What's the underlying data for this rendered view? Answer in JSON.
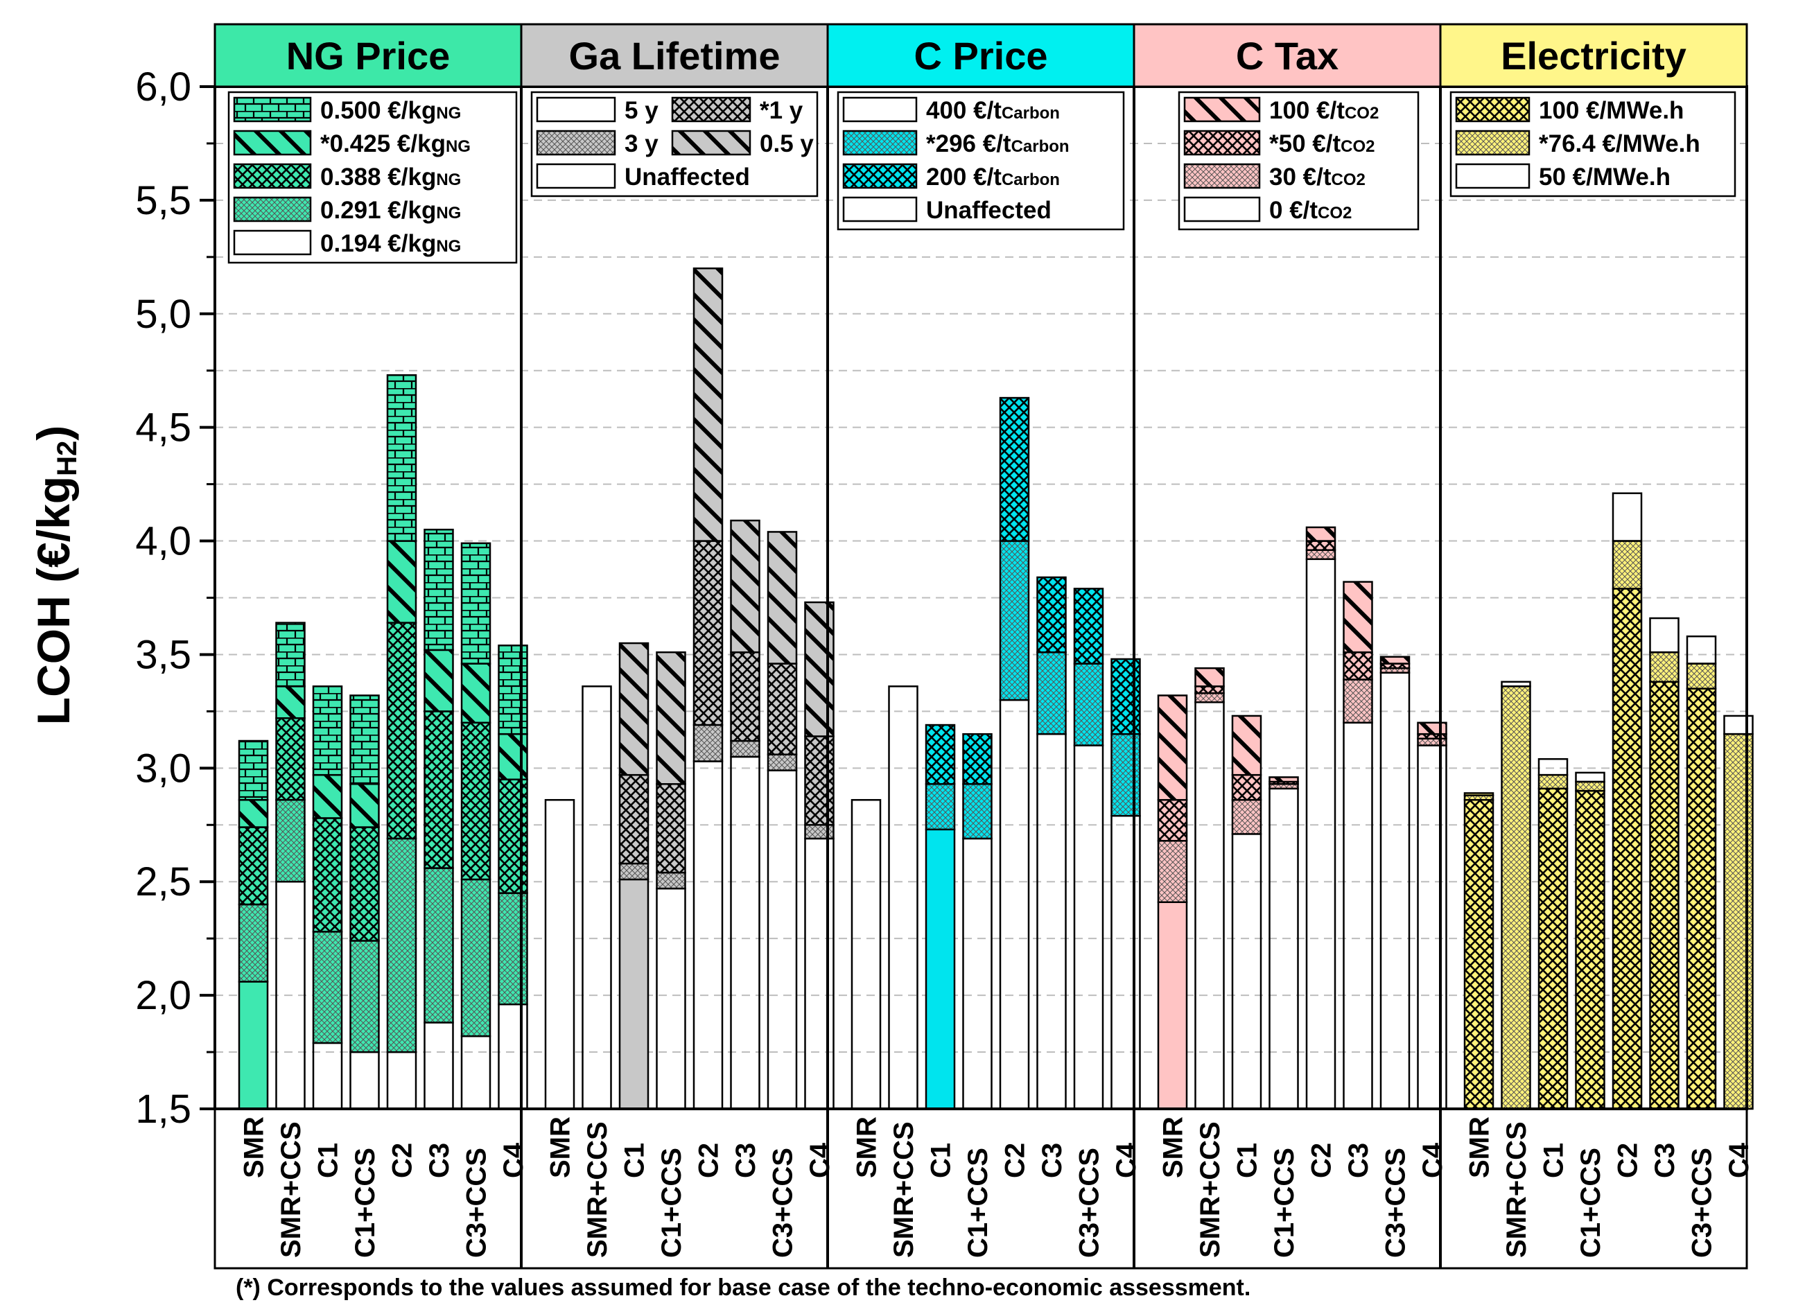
{
  "chart_data": {
    "type": "bar",
    "subtype": "stacked-sensitivity-panels",
    "ylabel": "LCOH (€/kg",
    "ylabel_sub": "H2",
    "ylabel_close": ")",
    "ylim": [
      1.5,
      6.0
    ],
    "yticks": [
      "1,5",
      "2,0",
      "2,5",
      "3,0",
      "3,5",
      "4,0",
      "4,5",
      "5,0",
      "5,5",
      "6,0"
    ],
    "ytick_values": [
      1.5,
      2.0,
      2.5,
      3.0,
      3.5,
      4.0,
      4.5,
      5.0,
      5.5,
      6.0
    ],
    "grid": true,
    "categories": [
      "SMR",
      "SMR+CCS",
      "C1",
      "C1+CCS",
      "C2",
      "C3",
      "C3+CCS",
      "C4"
    ],
    "footnote": "(*) Corresponds to the values assumed for base case of the techno-economic assessment.",
    "colors": {
      "ng": "#3ee8b0",
      "gray": "#c8c8c8",
      "white": "#ffffff",
      "cyan": "#00e4ee",
      "pink": "#ffc4c4",
      "yellow": "#fff27a",
      "yellow_bright": "#ffee00",
      "frame": "#000000"
    },
    "panels": [
      {
        "key": "ng",
        "title": "NG Price",
        "header_color": "#3de8a8",
        "legend": [
          {
            "label": "0.500 €/kg",
            "sub": "NG",
            "pattern": "brick",
            "fill": "#3ee8b0"
          },
          {
            "label": "*0.425 €/kg",
            "sub": "NG",
            "pattern": "diag",
            "fill": "#3ee8b0"
          },
          {
            "label": "0.388 €/kg",
            "sub": "NG",
            "pattern": "cross",
            "fill": "#3ee8b0"
          },
          {
            "label": "0.291 €/kg",
            "sub": "NG",
            "pattern": "dots",
            "fill": "#3ee8b0"
          },
          {
            "label": "0.194 €/kg",
            "sub": "NG",
            "pattern": "solid",
            "fill": "#3ee8b0"
          }
        ],
        "series": [
          {
            "name": "0.194 €/kgNG",
            "values": [
              2.06,
              2.5,
              1.79,
              1.75,
              1.75,
              1.88,
              1.82,
              1.96
            ],
            "pattern": "solid",
            "fill": "#3ee8b0"
          },
          {
            "name": "0.291 €/kgNG",
            "values": [
              2.4,
              2.86,
              2.28,
              2.24,
              2.69,
              2.56,
              2.51,
              2.45
            ],
            "pattern": "dots",
            "fill": "#3ee8b0"
          },
          {
            "name": "0.388 €/kgNG",
            "values": [
              2.74,
              3.22,
              2.78,
              2.74,
              3.64,
              3.25,
              3.2,
              2.95
            ],
            "pattern": "cross",
            "fill": "#3ee8b0"
          },
          {
            "name": "*0.425 €/kgNG",
            "values": [
              2.86,
              3.36,
              2.97,
              2.93,
              4.0,
              3.52,
              3.46,
              3.15
            ],
            "pattern": "diag",
            "fill": "#3ee8b0"
          },
          {
            "name": "0.500 €/kgNG",
            "values": [
              3.12,
              3.64,
              3.36,
              3.32,
              4.73,
              4.05,
              3.99,
              3.54
            ],
            "pattern": "brick",
            "fill": "#3ee8b0"
          }
        ]
      },
      {
        "key": "ga",
        "title": "Ga Lifetime",
        "header_color": "#c8c8c8",
        "legend": [
          {
            "label": "5 y",
            "pattern": "solid",
            "fill": "#c8c8c8"
          },
          {
            "label": "*1 y",
            "pattern": "cross",
            "fill": "#c8c8c8"
          },
          {
            "label": "3 y",
            "pattern": "dots",
            "fill": "#c8c8c8"
          },
          {
            "label": "0.5 y",
            "pattern": "diag",
            "fill": "#c8c8c8"
          },
          {
            "label": "Unaffected",
            "pattern": "solid",
            "fill": "#ffffff"
          }
        ],
        "series": [
          {
            "name": "Unaffected",
            "values": [
              2.86,
              3.36,
              null,
              null,
              null,
              null,
              null,
              null
            ],
            "pattern": "solid",
            "fill": "#ffffff"
          },
          {
            "name": "5 y",
            "values": [
              null,
              null,
              2.51,
              2.47,
              3.03,
              3.05,
              2.99,
              2.69
            ],
            "pattern": "solid",
            "fill": "#c8c8c8"
          },
          {
            "name": "3 y",
            "values": [
              null,
              null,
              2.58,
              2.54,
              3.19,
              3.12,
              3.06,
              2.75
            ],
            "pattern": "dots",
            "fill": "#c8c8c8"
          },
          {
            "name": "*1 y",
            "values": [
              null,
              null,
              2.97,
              2.93,
              4.0,
              3.51,
              3.46,
              3.14
            ],
            "pattern": "cross",
            "fill": "#c8c8c8"
          },
          {
            "name": "0.5 y",
            "values": [
              null,
              null,
              3.55,
              3.51,
              5.2,
              4.09,
              4.04,
              3.73
            ],
            "pattern": "diag",
            "fill": "#c8c8c8"
          }
        ]
      },
      {
        "key": "cp",
        "title": "C Price",
        "header_color": "#00f0f0",
        "legend": [
          {
            "label": "400 €/t",
            "sub": "Carbon",
            "pattern": "solid",
            "fill": "#00e4ee"
          },
          {
            "label": "*296 €/t",
            "sub": "Carbon",
            "pattern": "dots",
            "fill": "#00e4ee"
          },
          {
            "label": "200 €/t",
            "sub": "Carbon",
            "pattern": "cross",
            "fill": "#00e4ee"
          },
          {
            "label": "Unaffected",
            "pattern": "solid",
            "fill": "#ffffff"
          }
        ],
        "series": [
          {
            "name": "Unaffected",
            "values": [
              2.86,
              3.36,
              null,
              null,
              null,
              null,
              null,
              null
            ],
            "pattern": "solid",
            "fill": "#ffffff"
          },
          {
            "name": "400 €/tCarbon",
            "values": [
              null,
              null,
              2.73,
              2.69,
              3.3,
              3.15,
              3.1,
              2.79
            ],
            "pattern": "solid",
            "fill": "#00e4ee"
          },
          {
            "name": "*296 €/tCarbon",
            "values": [
              null,
              null,
              2.93,
              2.93,
              4.0,
              3.51,
              3.46,
              3.15
            ],
            "pattern": "dots",
            "fill": "#00e4ee"
          },
          {
            "name": "200 €/tCarbon",
            "values": [
              null,
              null,
              3.19,
              3.15,
              4.63,
              3.84,
              3.79,
              3.48
            ],
            "pattern": "cross",
            "fill": "#00e4ee"
          }
        ]
      },
      {
        "key": "ct",
        "title": "C Tax",
        "header_color": "#ffc4c4",
        "legend": [
          {
            "label": "100 €/t",
            "sub": "CO2",
            "pattern": "diag",
            "fill": "#ffc4c4"
          },
          {
            "label": "*50 €/t",
            "sub": "CO2",
            "pattern": "cross",
            "fill": "#ffc4c4"
          },
          {
            "label": "30 €/t",
            "sub": "CO2",
            "pattern": "dots",
            "fill": "#ffc4c4"
          },
          {
            "label": "0 €/t",
            "sub": "CO2",
            "pattern": "solid",
            "fill": "#ffc4c4"
          }
        ],
        "series": [
          {
            "name": "0 €/tCO2",
            "values": [
              2.41,
              3.29,
              2.71,
              2.91,
              3.92,
              3.2,
              3.42,
              3.1
            ],
            "pattern": "solid",
            "fill": "#ffc4c4"
          },
          {
            "name": "30 €/tCO2",
            "values": [
              2.68,
              3.33,
              2.86,
              2.93,
              3.96,
              3.39,
              3.44,
              3.13
            ],
            "pattern": "dots",
            "fill": "#ffc4c4"
          },
          {
            "name": "*50 €/tCO2",
            "values": [
              2.86,
              3.36,
              2.97,
              2.94,
              4.0,
              3.51,
              3.46,
              3.15
            ],
            "pattern": "cross",
            "fill": "#ffc4c4"
          },
          {
            "name": "100 €/tCO2",
            "values": [
              3.32,
              3.44,
              3.23,
              2.96,
              4.06,
              3.82,
              3.49,
              3.2
            ],
            "pattern": "diag",
            "fill": "#ffc4c4"
          }
        ]
      },
      {
        "key": "el",
        "title": "Electricity",
        "header_color": "#fff68a",
        "legend": [
          {
            "label": "100 €/MWe.h",
            "pattern": "cross",
            "fill": "#fff27a"
          },
          {
            "label": "*76.4 €/MWe.h",
            "pattern": "dots",
            "fill": "#fff27a"
          },
          {
            "label": "50 €/MWe.h",
            "pattern": "solid",
            "fill": "#fff27a"
          }
        ],
        "series": [
          {
            "name": "100 €/MWe.h",
            "values": [
              2.86,
              null,
              2.91,
              2.9,
              3.79,
              3.38,
              3.35,
              null
            ],
            "pattern": "cross",
            "fill": "#fff27a"
          },
          {
            "name": "*76.4 €/MWe.h",
            "values": [
              2.88,
              3.36,
              2.97,
              2.94,
              4.0,
              3.51,
              3.46,
              3.15
            ],
            "pattern": "dots",
            "fill": "#fff27a"
          },
          {
            "name": "50 €/MWe.h",
            "values": [
              2.89,
              3.38,
              3.04,
              2.98,
              4.21,
              3.66,
              3.58,
              3.23
            ],
            "pattern": "solid",
            "fill": "#fff27a"
          }
        ]
      }
    ]
  }
}
